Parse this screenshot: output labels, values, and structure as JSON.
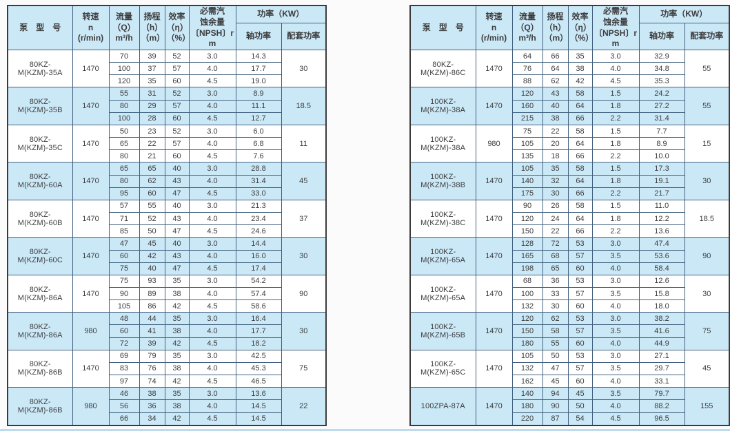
{
  "colors": {
    "header_bg": "#cbe8f7",
    "row_highlight": "#cbe8f7",
    "grid_line": "#41607d",
    "outer_border": "#3a3a3a",
    "text": "#3c3c3c"
  },
  "header": {
    "model": "泵　型　号",
    "speed": "转速\nn\n(r/min)",
    "flow": "流量\n（Q）\nm³/h",
    "head": "扬程\n（h）\n（m）",
    "eff": "效率\n（η）\n（%）",
    "npsh": "必需汽\n蚀余量\n〔NPSH〕r\nm",
    "power": "功率（KW）",
    "shaft": "轴功率",
    "matching": "配套功率"
  },
  "tables": [
    {
      "name": "left",
      "groups": [
        {
          "model": "80KZ-M(KZM)-35A",
          "speed": "1470",
          "highlight": false,
          "matching": "30",
          "rows": [
            [
              "70",
              "39",
              "52",
              "3.0",
              "14.3"
            ],
            [
              "100",
              "37",
              "57",
              "4.0",
              "17.7"
            ],
            [
              "120",
              "35",
              "60",
              "4.5",
              "19.0"
            ]
          ]
        },
        {
          "model": "80KZ-M(KZM)-35B",
          "speed": "1470",
          "highlight": true,
          "matching": "18.5",
          "rows": [
            [
              "55",
              "31",
              "52",
              "3.0",
              "8.9"
            ],
            [
              "80",
              "29",
              "57",
              "4.0",
              "11.1"
            ],
            [
              "100",
              "28",
              "60",
              "4.5",
              "12.7"
            ]
          ]
        },
        {
          "model": "80KZ-M(KZM)-35C",
          "speed": "1470",
          "highlight": false,
          "matching": "11",
          "rows": [
            [
              "50",
              "23",
              "52",
              "3.0",
              "6.0"
            ],
            [
              "65",
              "22",
              "57",
              "4.0",
              "6.8"
            ],
            [
              "80",
              "21",
              "60",
              "4.5",
              "7.6"
            ]
          ]
        },
        {
          "model": "80KZ-M(KZM)-60A",
          "speed": "1470",
          "highlight": true,
          "matching": "45",
          "rows": [
            [
              "65",
              "65",
              "40",
              "3.0",
              "28.8"
            ],
            [
              "80",
              "62",
              "43",
              "4.0",
              "31.4"
            ],
            [
              "95",
              "60",
              "47",
              "4.5",
              "33.0"
            ]
          ]
        },
        {
          "model": "80KZ-M(KZM)-60B",
          "speed": "1470",
          "highlight": false,
          "matching": "37",
          "rows": [
            [
              "57",
              "55",
              "40",
              "3.0",
              "21.3"
            ],
            [
              "71",
              "52",
              "43",
              "4.0",
              "23.4"
            ],
            [
              "85",
              "50",
              "47",
              "4.5",
              "24.6"
            ]
          ]
        },
        {
          "model": "80KZ-M(KZM)-60C",
          "speed": "1470",
          "highlight": true,
          "matching": "30",
          "rows": [
            [
              "47",
              "45",
              "40",
              "3.0",
              "14.4"
            ],
            [
              "60",
              "42",
              "43",
              "4.0",
              "16.0"
            ],
            [
              "75",
              "40",
              "47",
              "4.5",
              "17.4"
            ]
          ]
        },
        {
          "model": "80KZ-M(KZM)-86A",
          "speed": "1470",
          "highlight": false,
          "matching": "90",
          "rows": [
            [
              "75",
              "93",
              "35",
              "3.0",
              "54.2"
            ],
            [
              "90",
              "89",
              "38",
              "4.0",
              "57.4"
            ],
            [
              "105",
              "86",
              "42",
              "4.5",
              "58.6"
            ]
          ]
        },
        {
          "model": "80KZ-M(KZM)-86A",
          "speed": "980",
          "highlight": true,
          "matching": "30",
          "rows": [
            [
              "48",
              "44",
              "35",
              "3.0",
              "16.4"
            ],
            [
              "60",
              "41",
              "38",
              "4.0",
              "17.7"
            ],
            [
              "72",
              "39",
              "42",
              "4.5",
              "18.2"
            ]
          ]
        },
        {
          "model": "80KZ-M(KZM)-86B",
          "speed": "1470",
          "highlight": false,
          "matching": "75",
          "rows": [
            [
              "69",
              "79",
              "35",
              "3.0",
              "42.5"
            ],
            [
              "83",
              "76",
              "38",
              "4.0",
              "45.3"
            ],
            [
              "97",
              "74",
              "42",
              "4.5",
              "46.5"
            ]
          ]
        },
        {
          "model": "80KZ-M(KZM)-86B",
          "speed": "980",
          "highlight": true,
          "matching": "22",
          "rows": [
            [
              "46",
              "38",
              "35",
              "3.0",
              "13.6"
            ],
            [
              "56",
              "36",
              "38",
              "4.0",
              "14.5"
            ],
            [
              "66",
              "34",
              "42",
              "4.5",
              "14.5"
            ]
          ]
        }
      ]
    },
    {
      "name": "right",
      "groups": [
        {
          "model": "80KZ-M(KZM)-86C",
          "speed": "1470",
          "highlight": false,
          "matching": "55",
          "rows": [
            [
              "64",
              "66",
              "35",
              "3.0",
              "32.9"
            ],
            [
              "76",
              "64",
              "38",
              "4.0",
              "34.8"
            ],
            [
              "88",
              "62",
              "42",
              "4.5",
              "35.3"
            ]
          ]
        },
        {
          "model": "100KZ-M(KZM)-38A",
          "speed": "1470",
          "highlight": true,
          "matching": "55",
          "rows": [
            [
              "120",
              "43",
              "58",
              "1.5",
              "24.2"
            ],
            [
              "160",
              "40",
              "64",
              "1.8",
              "27.2"
            ],
            [
              "215",
              "38",
              "66",
              "2.2",
              "31.4"
            ]
          ]
        },
        {
          "model": "100KZ-M(KZM)-38A",
          "speed": "980",
          "highlight": false,
          "matching": "15",
          "rows": [
            [
              "75",
              "22",
              "58",
              "1.5",
              "7.7"
            ],
            [
              "105",
              "20",
              "64",
              "1.8",
              "8.9"
            ],
            [
              "135",
              "18",
              "66",
              "2.2",
              "10.0"
            ]
          ]
        },
        {
          "model": "100KZ-M(KZM)-38B",
          "speed": "1470",
          "highlight": true,
          "matching": "30",
          "rows": [
            [
              "105",
              "35",
              "58",
              "1.5",
              "17.3"
            ],
            [
              "140",
              "32",
              "64",
              "1.8",
              "19.1"
            ],
            [
              "175",
              "30",
              "66",
              "2.2",
              "21.7"
            ]
          ]
        },
        {
          "model": "100KZ-M(KZM)-38C",
          "speed": "1470",
          "highlight": false,
          "matching": "18.5",
          "rows": [
            [
              "90",
              "26",
              "58",
              "1.5",
              "11.0"
            ],
            [
              "120",
              "24",
              "64",
              "1.8",
              "12.2"
            ],
            [
              "150",
              "22",
              "66",
              "2.2",
              "13.6"
            ]
          ]
        },
        {
          "model": "100KZ-M(KZM)-65A",
          "speed": "1470",
          "highlight": true,
          "matching": "90",
          "rows": [
            [
              "128",
              "72",
              "53",
              "3.0",
              "47.4"
            ],
            [
              "165",
              "68",
              "57",
              "3.5",
              "53.6"
            ],
            [
              "198",
              "65",
              "60",
              "4.0",
              "58.4"
            ]
          ]
        },
        {
          "model": "100KZ-M(KZM)-65A",
          "speed": "1470",
          "highlight": false,
          "matching": "30",
          "rows": [
            [
              "68",
              "36",
              "53",
              "3.0",
              "12.6"
            ],
            [
              "100",
              "33",
              "57",
              "3.5",
              "15.8"
            ],
            [
              "132",
              "30",
              "60",
              "4.0",
              "18.0"
            ]
          ]
        },
        {
          "model": "100KZ-M(KZM)-65B",
          "speed": "1470",
          "highlight": true,
          "matching": "75",
          "rows": [
            [
              "120",
              "62",
              "53",
              "3.0",
              "38.2"
            ],
            [
              "150",
              "58",
              "57",
              "3.5",
              "41.6"
            ],
            [
              "180",
              "55",
              "60",
              "4.0",
              "44.9"
            ]
          ]
        },
        {
          "model": "100KZ-M(KZM)-65C",
          "speed": "1470",
          "highlight": false,
          "matching": "45",
          "rows": [
            [
              "105",
              "50",
              "53",
              "3.0",
              "27.1"
            ],
            [
              "132",
              "47",
              "57",
              "3.5",
              "29.7"
            ],
            [
              "162",
              "45",
              "60",
              "4.0",
              "33.1"
            ]
          ]
        },
        {
          "model": "100ZPA-87A",
          "speed": "1470",
          "highlight": true,
          "matching": "155",
          "rows": [
            [
              "140",
              "94",
              "45",
              "3.5",
              "79.7"
            ],
            [
              "180",
              "90",
              "50",
              "4.0",
              "88.2"
            ],
            [
              "220",
              "87",
              "54",
              "4.5",
              "96.5"
            ]
          ]
        }
      ]
    }
  ]
}
